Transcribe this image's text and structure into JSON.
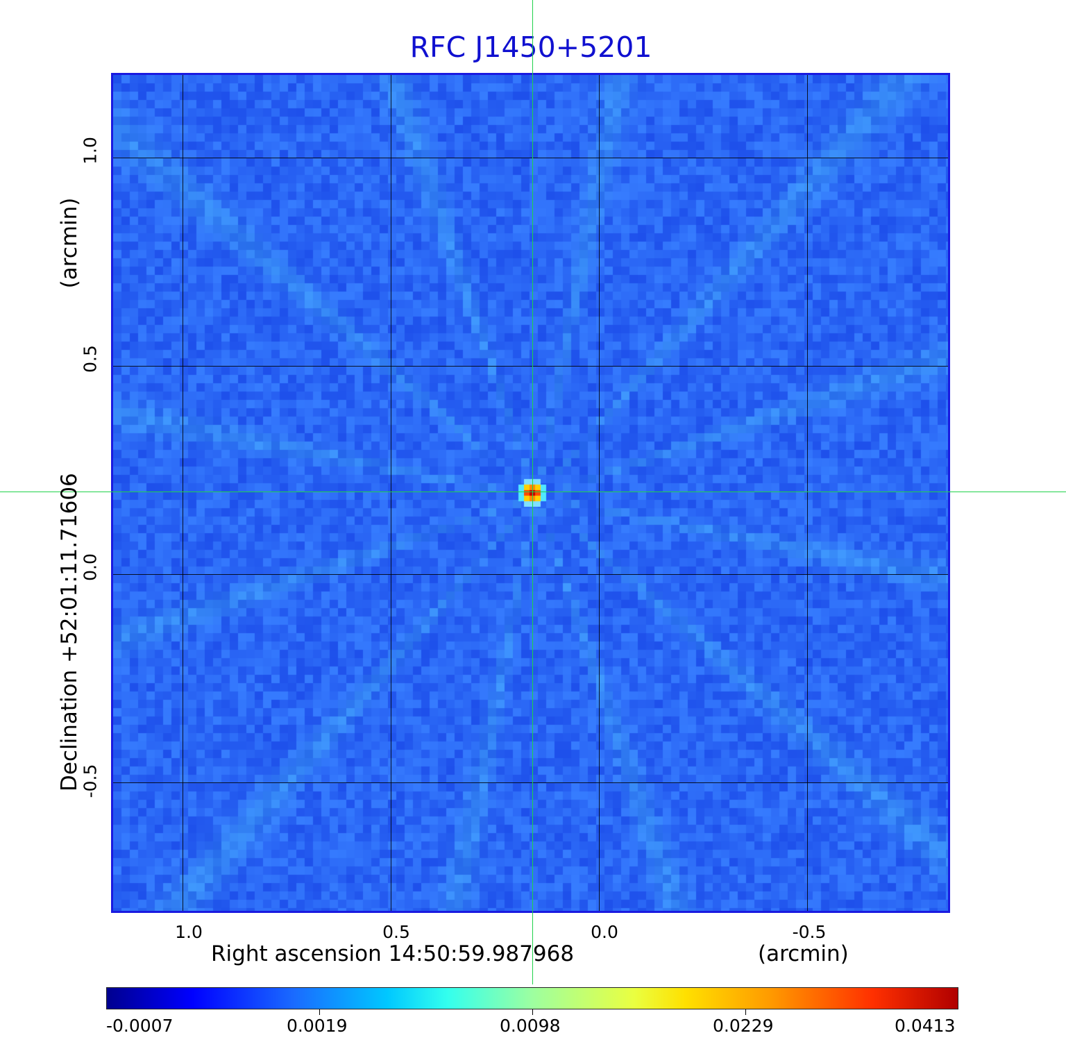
{
  "title": "RFC J1450+5201",
  "x_axis": {
    "label": "Right ascension  14:50:59.987968",
    "unit": "(arcmin)",
    "ticks": [
      "1.0",
      "0.5",
      "0.0",
      "-0.5"
    ]
  },
  "y_axis": {
    "label": "Declination  +52:01:11.71606",
    "unit": "(arcmin)",
    "ticks": [
      "1.0",
      "0.5",
      "0.0",
      "-0.5"
    ]
  },
  "colorbar": {
    "labels": [
      "-0.0007",
      "0.0019",
      "0.0098",
      "0.0229",
      "0.0413"
    ]
  },
  "colors": {
    "background_map": "#2a5af2",
    "frame": "#1a1ae0",
    "crosshair": "#1fd24a",
    "title": "#1010d0"
  }
}
